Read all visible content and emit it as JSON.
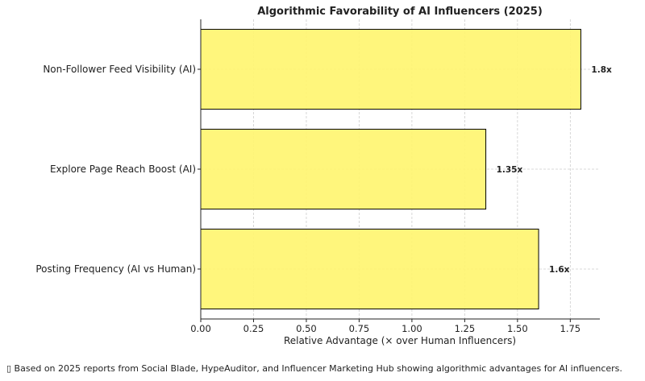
{
  "chart_data": {
    "type": "bar",
    "orientation": "horizontal",
    "title": "Algorithmic Favorability of AI Influencers (2025)",
    "xlabel": "Relative Advantage (× over Human Influencers)",
    "ylabel": "",
    "categories": [
      "Non-Follower Feed Visibility (AI)",
      "Explore Page Reach Boost (AI)",
      "Posting Frequency (AI vs Human)"
    ],
    "values": [
      1.8,
      1.35,
      1.6
    ],
    "data_labels": [
      "1.8x",
      "1.35x",
      "1.6x"
    ],
    "xlim": [
      0,
      1.89
    ],
    "xticks": [
      "0.00",
      "0.25",
      "0.50",
      "0.75",
      "1.00",
      "1.25",
      "1.50",
      "1.75"
    ],
    "grid": true,
    "bar_color": "#fff571",
    "edge_color": "#000000"
  },
  "footnote": "▯ Based on 2025 reports from Social Blade, HypeAuditor, and Influencer Marketing Hub showing algorithmic advantages for AI influencers."
}
